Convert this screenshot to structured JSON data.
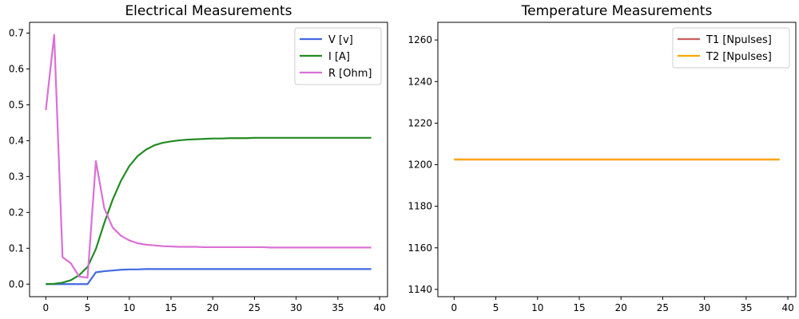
{
  "chart_data": [
    {
      "type": "line",
      "title": "Electrical Measurements",
      "xlabel": "",
      "ylabel": "",
      "xlim": [
        -1.95,
        40.95
      ],
      "ylim": [
        -0.035,
        0.73
      ],
      "xticks": [
        "0",
        "5",
        "10",
        "15",
        "20",
        "25",
        "30",
        "35",
        "40"
      ],
      "yticks": [
        "0.0",
        "0.1",
        "0.2",
        "0.3",
        "0.4",
        "0.5",
        "0.6",
        "0.7"
      ],
      "grid": false,
      "legend": "top-right",
      "x": [
        0,
        1,
        2,
        3,
        4,
        5,
        6,
        7,
        8,
        9,
        10,
        11,
        12,
        13,
        14,
        15,
        16,
        17,
        18,
        19,
        20,
        21,
        22,
        23,
        24,
        25,
        26,
        27,
        28,
        29,
        30,
        31,
        32,
        33,
        34,
        35,
        36,
        37,
        38,
        39
      ],
      "series": [
        {
          "name": "V [v]",
          "color": "#4169e1",
          "values": [
            0.0,
            0.0,
            0.0,
            0.0,
            0.0,
            0.0,
            0.033,
            0.036,
            0.038,
            0.04,
            0.041,
            0.041,
            0.042,
            0.042,
            0.042,
            0.042,
            0.042,
            0.042,
            0.042,
            0.042,
            0.042,
            0.042,
            0.042,
            0.042,
            0.042,
            0.042,
            0.042,
            0.042,
            0.042,
            0.042,
            0.042,
            0.042,
            0.042,
            0.042,
            0.042,
            0.042,
            0.042,
            0.042,
            0.042,
            0.042
          ]
        },
        {
          "name": "I [A]",
          "color": "#228b22",
          "values": [
            0.0,
            0.001,
            0.004,
            0.011,
            0.025,
            0.048,
            0.098,
            0.17,
            0.235,
            0.288,
            0.329,
            0.357,
            0.375,
            0.387,
            0.394,
            0.398,
            0.401,
            0.403,
            0.404,
            0.405,
            0.406,
            0.406,
            0.407,
            0.407,
            0.407,
            0.408,
            0.408,
            0.408,
            0.408,
            0.408,
            0.408,
            0.408,
            0.408,
            0.408,
            0.408,
            0.408,
            0.408,
            0.408,
            0.408,
            0.408
          ]
        },
        {
          "name": "R [Ohm]",
          "color": "#da70d6",
          "values": [
            0.485,
            0.695,
            0.075,
            0.058,
            0.021,
            0.018,
            0.343,
            0.212,
            0.158,
            0.135,
            0.122,
            0.114,
            0.11,
            0.108,
            0.106,
            0.105,
            0.104,
            0.104,
            0.104,
            0.103,
            0.103,
            0.103,
            0.103,
            0.103,
            0.103,
            0.103,
            0.103,
            0.102,
            0.102,
            0.102,
            0.102,
            0.102,
            0.102,
            0.102,
            0.102,
            0.102,
            0.102,
            0.102,
            0.102,
            0.102
          ]
        }
      ]
    },
    {
      "type": "line",
      "title": "Temperature Measurements",
      "xlabel": "",
      "ylabel": "",
      "xlim": [
        -1.95,
        40.95
      ],
      "ylim": [
        1136.5,
        1268.5
      ],
      "xticks": [
        "0",
        "5",
        "10",
        "15",
        "20",
        "25",
        "30",
        "35",
        "40"
      ],
      "yticks": [
        "1140",
        "1160",
        "1180",
        "1200",
        "1220",
        "1240",
        "1260"
      ],
      "grid": false,
      "legend": "top-right",
      "x": [
        0,
        39
      ],
      "series": [
        {
          "name": "T1 [Npulses]",
          "color": "#cd5c5c",
          "values": [
            1202.5,
            1202.5
          ]
        },
        {
          "name": "T2 [Npulses]",
          "color": "#ffa500",
          "values": [
            1202.5,
            1202.5
          ]
        }
      ]
    }
  ]
}
